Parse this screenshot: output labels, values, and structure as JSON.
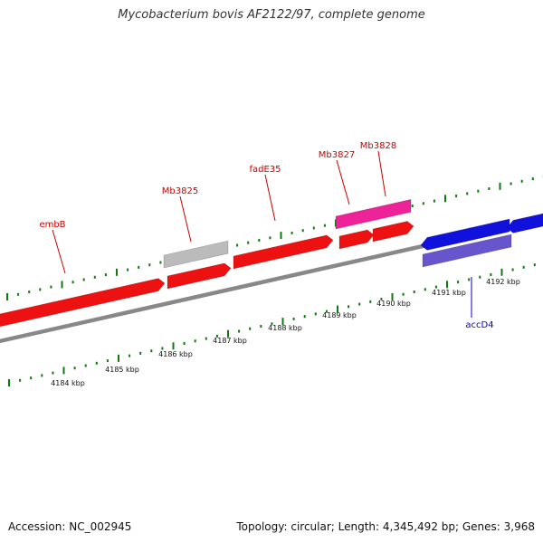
{
  "title": "Mycobacterium bovis AF2122/97, complete genome",
  "footer": {
    "accession": "Accession: NC_002945",
    "summary": "Topology: circular; Length: 4,345,492 bp; Genes: 3,968"
  },
  "colors": {
    "gene_red": "#ee1111",
    "gene_pink": "#ee2299",
    "gene_gray": "#bbbbbb",
    "gene_blue": "#1111dd",
    "gene_purple": "#6655cc",
    "label_red": "#cc0000",
    "label_blue": "#0000cc",
    "tick_green": "#117711",
    "backbone": "#888888"
  },
  "gene_labels": [
    {
      "text": "embB",
      "color": "label_red"
    },
    {
      "text": "Mb3825",
      "color": "label_red"
    },
    {
      "text": "fadE35",
      "color": "label_red"
    },
    {
      "text": "Mb3827",
      "color": "label_red"
    },
    {
      "text": "Mb3828",
      "color": "label_red"
    },
    {
      "text": "accD4",
      "color": "label_blue"
    }
  ],
  "kbp_labels": [
    "4184 kbp",
    "4185 kbp",
    "4186 kbp",
    "4187 kbp",
    "4188 kbp",
    "4189 kbp",
    "4190 kbp",
    "4191 kbp",
    "4192 kbp"
  ]
}
